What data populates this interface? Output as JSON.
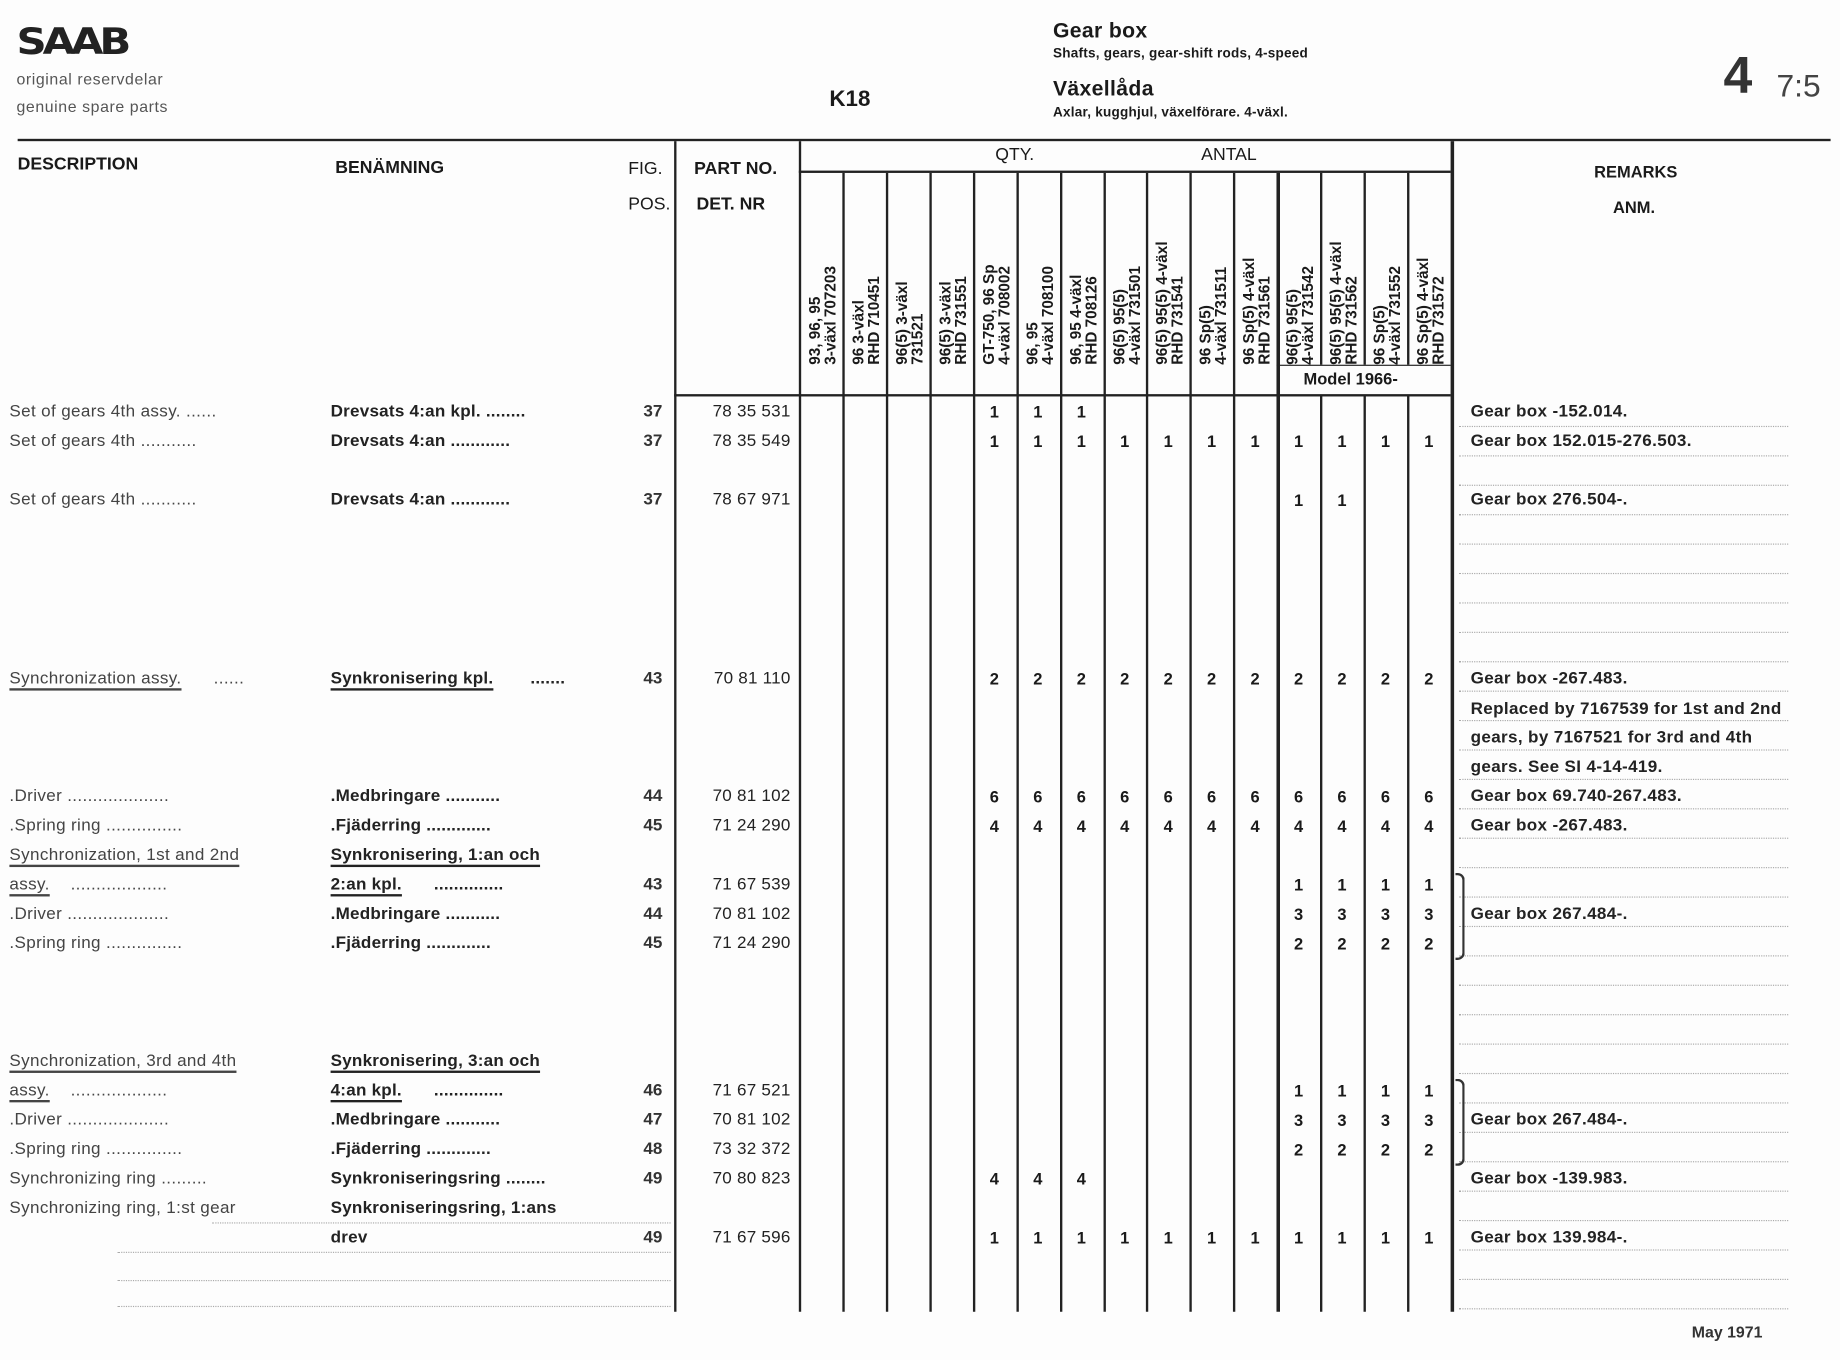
{
  "header": {
    "logo": "SAAB",
    "tagline_sv": "original reservdelar",
    "tagline_en": "genuine spare parts",
    "code": "K18",
    "title_en": "Gear box",
    "subtitle_en": "Shafts, gears, gear-shift rods, 4-speed",
    "title_sv": "Växellåda",
    "subtitle_sv": "Axlar, kugghjul, växelförare. 4-växl.",
    "section_major": "4",
    "section_minor": "7:5"
  },
  "columns": {
    "description": "DESCRIPTION",
    "benamning": "BENÄMNING",
    "fig": "FIG.",
    "pos": "POS.",
    "part_no": "PART NO.",
    "det_nr": "DET. NR",
    "qty": "QTY.",
    "antal": "ANTAL",
    "remarks": "REMARKS",
    "anm": "ANM.",
    "model_note": "Model 1966-",
    "variants": [
      [
        "93, 96, 95",
        "3-växl 707203"
      ],
      [
        "96 3-växl",
        "RHD 710451"
      ],
      [
        "96(5) 3-växl",
        "731521"
      ],
      [
        "96(5) 3-växl",
        "RHD 731551"
      ],
      [
        "GT-750, 96 Sp",
        "4-växl 708002"
      ],
      [
        "96, 95",
        "4-växl 708100"
      ],
      [
        "96, 95 4-växl",
        "RHD 708126"
      ],
      [
        "96(5) 95(5)",
        "4-växl 731501"
      ],
      [
        "96(5) 95(5) 4-växl",
        "RHD 731541"
      ],
      [
        "96 Sp(5)",
        "4-växl 731511"
      ],
      [
        "96 Sp(5) 4-växl",
        "RHD 731561"
      ],
      [
        "96(5) 95(5)",
        "4-växl 731542"
      ],
      [
        "96(5) 95(5) 4-växl",
        "RHD 731562"
      ],
      [
        "96 Sp(5)",
        "4-växl 731552"
      ],
      [
        "96 Sp(5) 4-växl",
        "RHD 731572"
      ]
    ]
  },
  "lines": [
    {
      "desc": "Set of gears 4th assy. ......",
      "ben": "Drevsats 4:an kpl. ........",
      "pos": "37",
      "part": "78 35 531",
      "qty": [
        "",
        "",
        "",
        "",
        "1",
        "1",
        "1",
        "",
        "",
        "",
        "",
        "",
        "",
        "",
        ""
      ],
      "remark": "Gear box -152.014."
    },
    {
      "desc": "Set of gears 4th ...........",
      "ben": "Drevsats 4:an ............",
      "pos": "37",
      "part": "78 35 549",
      "qty": [
        "",
        "",
        "",
        "",
        "1",
        "1",
        "1",
        "1",
        "1",
        "1",
        "1",
        "1",
        "1",
        "1",
        "1"
      ],
      "remark": "Gear box 152.015-276.503."
    },
    {
      "desc": "Set of gears 4th ...........",
      "ben": "Drevsats 4:an ............",
      "pos": "37",
      "part": "78 67 971",
      "qty": [
        "",
        "",
        "",
        "",
        "",
        "",
        "",
        "",
        "",
        "",
        "",
        "1",
        "1",
        "",
        ""
      ],
      "remark": "Gear box 276.504-."
    },
    {
      "desc": "Synchronization assy.",
      "desc_tail": "......",
      "desc_ul": true,
      "ben": "Synkronisering kpl.",
      "ben_tail": ".......",
      "ben_ul": true,
      "pos": "43",
      "part": "70 81 110",
      "qty": [
        "",
        "",
        "",
        "",
        "2",
        "2",
        "2",
        "2",
        "2",
        "2",
        "2",
        "2",
        "2",
        "2",
        "2"
      ],
      "remark": "Gear box -267.483."
    },
    {
      "remark": "Replaced by 7167539 for 1st and 2nd"
    },
    {
      "remark": "gears, by 7167521 for 3rd and 4th"
    },
    {
      "remark": "gears. See SI 4-14-419."
    },
    {
      "desc": ".Driver ....................",
      "ben": ".Medbringare ...........",
      "pos": "44",
      "part": "70 81 102",
      "qty": [
        "",
        "",
        "",
        "",
        "6",
        "6",
        "6",
        "6",
        "6",
        "6",
        "6",
        "6",
        "6",
        "6",
        "6"
      ],
      "remark": "Gear box 69.740-267.483."
    },
    {
      "desc": ".Spring ring ...............",
      "ben": ".Fjäderring .............",
      "pos": "45",
      "part": "71 24 290",
      "qty": [
        "",
        "",
        "",
        "",
        "4",
        "4",
        "4",
        "4",
        "4",
        "4",
        "4",
        "4",
        "4",
        "4",
        "4"
      ],
      "remark": "Gear box -267.483."
    },
    {
      "desc": "Synchronization, 1st and 2nd",
      "desc_ul": true,
      "ben": "Synkronisering, 1:an och",
      "ben_ul": true
    },
    {
      "desc": "assy.",
      "desc_tail": "...................",
      "desc_ul": true,
      "ben": "2:an kpl.",
      "ben_tail": "..............",
      "ben_ul": true,
      "pos": "43",
      "part": "71 67 539",
      "qty": [
        "",
        "",
        "",
        "",
        "",
        "",
        "",
        "",
        "",
        "",
        "",
        "1",
        "1",
        "1",
        "1"
      ]
    },
    {
      "desc": ".Driver ....................",
      "ben": ".Medbringare ...........",
      "pos": "44",
      "part": "70 81 102",
      "qty": [
        "",
        "",
        "",
        "",
        "",
        "",
        "",
        "",
        "",
        "",
        "",
        "3",
        "3",
        "3",
        "3"
      ],
      "remark": "Gear box 267.484-."
    },
    {
      "desc": ".Spring ring ...............",
      "ben": ".Fjäderring .............",
      "pos": "45",
      "part": "71 24 290",
      "qty": [
        "",
        "",
        "",
        "",
        "",
        "",
        "",
        "",
        "",
        "",
        "",
        "2",
        "2",
        "2",
        "2"
      ]
    },
    {
      "desc": "Synchronization, 3rd and 4th",
      "desc_ul": true,
      "ben": "Synkronisering, 3:an och",
      "ben_ul": true
    },
    {
      "desc": "assy.",
      "desc_tail": "...................",
      "desc_ul": true,
      "ben": "4:an kpl.",
      "ben_tail": "..............",
      "ben_ul": true,
      "pos": "46",
      "part": "71 67 521",
      "qty": [
        "",
        "",
        "",
        "",
        "",
        "",
        "",
        "",
        "",
        "",
        "",
        "1",
        "1",
        "1",
        "1"
      ]
    },
    {
      "desc": ".Driver ....................",
      "ben": ".Medbringare ...........",
      "pos": "47",
      "part": "70 81 102",
      "qty": [
        "",
        "",
        "",
        "",
        "",
        "",
        "",
        "",
        "",
        "",
        "",
        "3",
        "3",
        "3",
        "3"
      ],
      "remark": "Gear box 267.484-."
    },
    {
      "desc": ".Spring ring ...............",
      "ben": ".Fjäderring .............",
      "pos": "48",
      "part": "73 32 372",
      "qty": [
        "",
        "",
        "",
        "",
        "",
        "",
        "",
        "",
        "",
        "",
        "",
        "2",
        "2",
        "2",
        "2"
      ]
    },
    {
      "desc": "Synchronizing ring .........",
      "ben": "Synkroniseringsring ........",
      "pos": "49",
      "part": "70 80 823",
      "qty": [
        "",
        "",
        "",
        "",
        "4",
        "4",
        "4",
        "",
        "",
        "",
        "",
        "",
        "",
        "",
        ""
      ],
      "remark": "Gear box -139.983."
    },
    {
      "desc": "Synchronizing ring, 1:st gear",
      "ben": "Synkroniseringsring, 1:ans"
    },
    {
      "ben": "drev",
      "pos": "49",
      "part": "71 67 596",
      "qty": [
        "",
        "",
        "",
        "",
        "1",
        "1",
        "1",
        "1",
        "1",
        "1",
        "1",
        "1",
        "1",
        "1",
        "1"
      ],
      "remark": "Gear box 139.984-."
    }
  ],
  "footer": {
    "date": "May 1971"
  }
}
